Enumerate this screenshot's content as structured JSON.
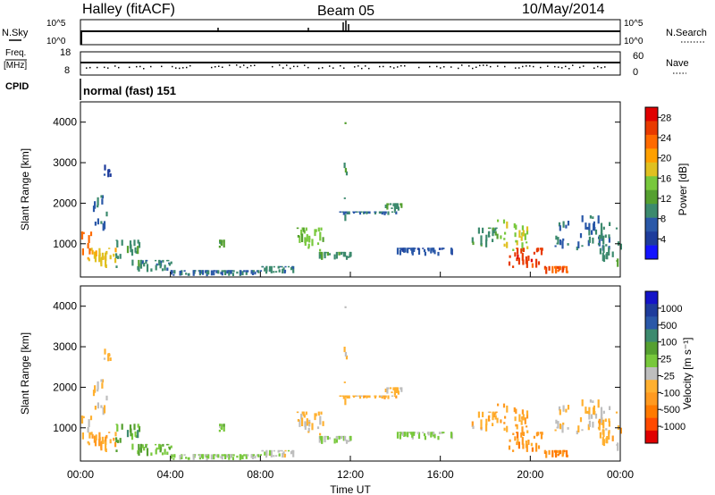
{
  "header": {
    "title": "Halley (fitACF)",
    "beam": "Beam 05",
    "date": "10/May/2014"
  },
  "top_panels": {
    "nsky_label": "N.Sky",
    "nsky_ticks": [
      "10^5",
      "10^0"
    ],
    "nsearch_label": "N.Search",
    "nsearch_ticks": [
      "10^5",
      "10^0"
    ],
    "freq_label": "Freq.",
    "freq_unit": "[MHz]",
    "freq_ticks": [
      "18",
      "8"
    ],
    "nave_label": "Nave",
    "nave_ticks": [
      "60",
      "0"
    ],
    "cpid_label": "CPID",
    "cpid_value": "normal (fast) 151"
  },
  "x_axis": {
    "label": "Time UT",
    "ticks": [
      "00:00",
      "04:00",
      "08:00",
      "12:00",
      "16:00",
      "20:00",
      "00:00"
    ]
  },
  "colors": {
    "power": [
      "#1414ff",
      "#1e3c9c",
      "#2a58a8",
      "#3c8a6e",
      "#55a030",
      "#78c83c",
      "#e0c020",
      "#ffa000",
      "#ff6a00",
      "#e83a00",
      "#e00000"
    ],
    "velocity": [
      "#e00000",
      "#ff4a00",
      "#ff7a00",
      "#ff9a20",
      "#ffb030",
      "#bebebe",
      "#78c83c",
      "#55a030",
      "#3c8a6e",
      "#2a58a8",
      "#1e3c9c",
      "#1414c8"
    ]
  },
  "chart_data": [
    {
      "type": "heatmap",
      "title": "",
      "xlabel": "Time UT",
      "ylabel": "Slant Range [km]",
      "xlim": [
        0,
        24
      ],
      "ylim": [
        180,
        4500
      ],
      "yticks": [
        "1000",
        "2000",
        "3000",
        "4000"
      ],
      "colorbar_label": "Power [dB]",
      "colorbar_ticks": [
        "4",
        "8",
        "12",
        "16",
        "20",
        "24",
        "28"
      ],
      "colorbar_range": [
        0,
        30
      ],
      "echo_regions": [
        {
          "t": [
            0.0,
            0.5
          ],
          "r": [
            700,
            1300
          ],
          "value": 22
        },
        {
          "t": [
            0.3,
            1.6
          ],
          "r": [
            400,
            900
          ],
          "value": 18
        },
        {
          "t": [
            0.5,
            1.2
          ],
          "r": [
            1200,
            2200
          ],
          "value": 8
        },
        {
          "t": [
            1.0,
            1.3
          ],
          "r": [
            2600,
            2950
          ],
          "value": 6
        },
        {
          "t": [
            1.5,
            2.6
          ],
          "r": [
            400,
            1100
          ],
          "value": 10
        },
        {
          "t": [
            2.5,
            4.0
          ],
          "r": [
            300,
            600
          ],
          "value": 9
        },
        {
          "t": [
            4.0,
            8.0
          ],
          "r": [
            200,
            350
          ],
          "value": 8
        },
        {
          "t": [
            6.0,
            6.4
          ],
          "r": [
            900,
            1100
          ],
          "value": 12
        },
        {
          "t": [
            8.0,
            9.5
          ],
          "r": [
            250,
            450
          ],
          "value": 9
        },
        {
          "t": [
            9.5,
            11.0
          ],
          "r": [
            700,
            1400
          ],
          "value": 14
        },
        {
          "t": [
            10.5,
            12.0
          ],
          "r": [
            600,
            800
          ],
          "value": 10
        },
        {
          "t": [
            11.7,
            11.8
          ],
          "r": [
            1100,
            4000
          ],
          "value": 10
        },
        {
          "t": [
            11.5,
            14.0
          ],
          "r": [
            1700,
            1800
          ],
          "value": 8
        },
        {
          "t": [
            13.5,
            14.3
          ],
          "r": [
            1800,
            2000
          ],
          "value": 10
        },
        {
          "t": [
            14.0,
            16.5
          ],
          "r": [
            700,
            900
          ],
          "value": 6
        },
        {
          "t": [
            17.3,
            18.5
          ],
          "r": [
            900,
            1400
          ],
          "value": 10
        },
        {
          "t": [
            18.5,
            20.0
          ],
          "r": [
            800,
            1600
          ],
          "value": 16
        },
        {
          "t": [
            19.0,
            20.5
          ],
          "r": [
            400,
            900
          ],
          "value": 26
        },
        {
          "t": [
            20.5,
            21.8
          ],
          "r": [
            250,
            450
          ],
          "value": 24
        },
        {
          "t": [
            21.0,
            23.5
          ],
          "r": [
            800,
            1700
          ],
          "value": 8
        },
        {
          "t": [
            23.0,
            24.0
          ],
          "r": [
            400,
            1400
          ],
          "value": 10
        }
      ]
    },
    {
      "type": "heatmap",
      "title": "",
      "xlabel": "Time UT",
      "ylabel": "Slant Range [km]",
      "xlim": [
        0,
        24
      ],
      "ylim": [
        180,
        4500
      ],
      "yticks": [
        "1000",
        "2000",
        "3000",
        "4000"
      ],
      "colorbar_label": "Velocity [m s⁻¹]",
      "colorbar_ticks": [
        "1000",
        "500",
        "100",
        "25",
        "-25",
        "-100",
        "-500",
        "-1000"
      ],
      "colorbar_range": [
        -1200,
        1200
      ],
      "echo_regions": [
        {
          "t": [
            0.0,
            0.5
          ],
          "r": [
            700,
            1300
          ],
          "value": -300
        },
        {
          "t": [
            0.3,
            1.6
          ],
          "r": [
            400,
            900
          ],
          "value": -400
        },
        {
          "t": [
            0.5,
            1.2
          ],
          "r": [
            1200,
            2200
          ],
          "value": -150
        },
        {
          "t": [
            1.0,
            1.3
          ],
          "r": [
            2600,
            2950
          ],
          "value": -200
        },
        {
          "t": [
            1.5,
            2.6
          ],
          "r": [
            400,
            1100
          ],
          "value": 300
        },
        {
          "t": [
            2.5,
            4.0
          ],
          "r": [
            300,
            600
          ],
          "value": 150
        },
        {
          "t": [
            4.0,
            8.0
          ],
          "r": [
            200,
            350
          ],
          "value": 50
        },
        {
          "t": [
            6.0,
            6.4
          ],
          "r": [
            900,
            1100
          ],
          "value": 80
        },
        {
          "t": [
            8.0,
            9.5
          ],
          "r": [
            250,
            450
          ],
          "value": -100
        },
        {
          "t": [
            9.5,
            11.0
          ],
          "r": [
            700,
            1400
          ],
          "value": -250
        },
        {
          "t": [
            10.5,
            12.0
          ],
          "r": [
            600,
            800
          ],
          "value": 0
        },
        {
          "t": [
            11.7,
            11.8
          ],
          "r": [
            1100,
            4000
          ],
          "value": -200
        },
        {
          "t": [
            11.5,
            14.0
          ],
          "r": [
            1700,
            1800
          ],
          "value": -300
        },
        {
          "t": [
            13.5,
            14.3
          ],
          "r": [
            1800,
            2000
          ],
          "value": -250
        },
        {
          "t": [
            14.0,
            16.5
          ],
          "r": [
            700,
            900
          ],
          "value": 0
        },
        {
          "t": [
            17.3,
            18.5
          ],
          "r": [
            900,
            1400
          ],
          "value": -300
        },
        {
          "t": [
            18.5,
            20.0
          ],
          "r": [
            800,
            1600
          ],
          "value": -400
        },
        {
          "t": [
            19.0,
            20.5
          ],
          "r": [
            400,
            900
          ],
          "value": -500
        },
        {
          "t": [
            20.5,
            21.8
          ],
          "r": [
            250,
            450
          ],
          "value": -600
        },
        {
          "t": [
            21.0,
            23.5
          ],
          "r": [
            800,
            1700
          ],
          "value": -200
        },
        {
          "t": [
            23.0,
            24.0
          ],
          "r": [
            400,
            1400
          ],
          "value": -300
        }
      ]
    }
  ]
}
